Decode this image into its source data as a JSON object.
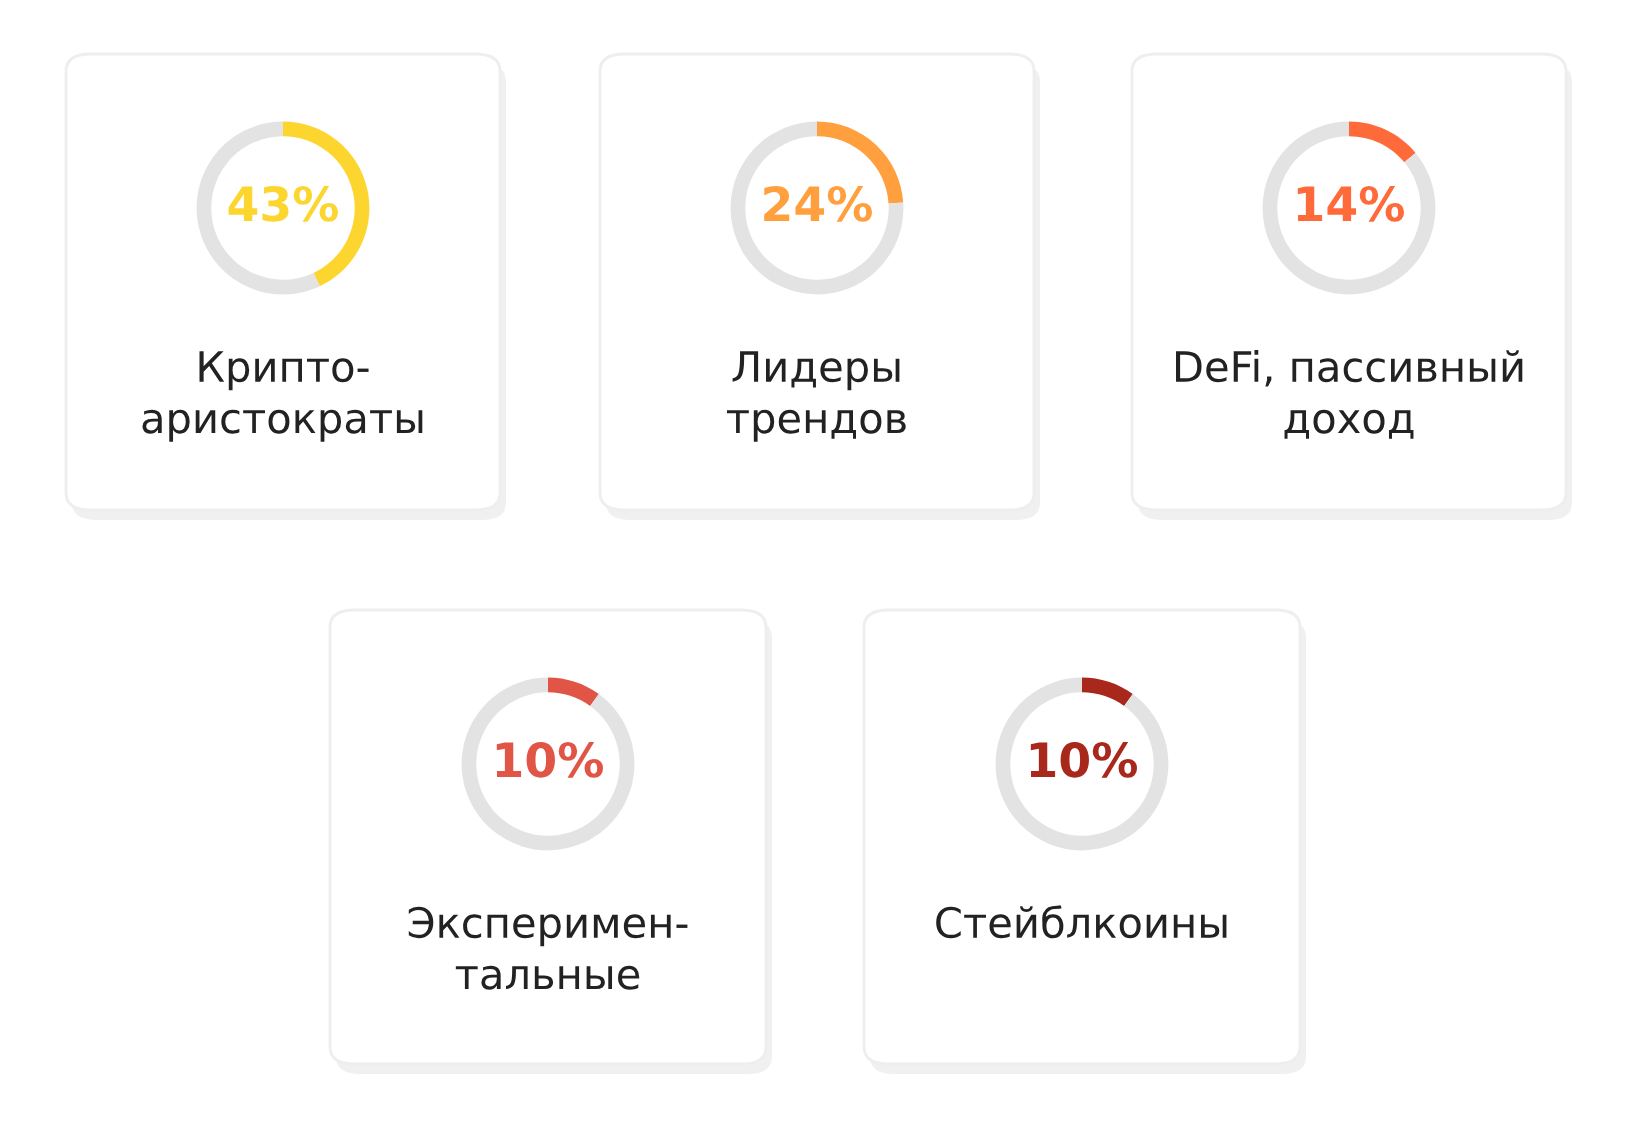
{
  "chart_data": [
    {
      "type": "donut",
      "title": "Крипто-\nаристократы",
      "categories": [
        null,
        null
      ],
      "values": [
        43,
        57
      ],
      "colors": [
        "#fdd52f",
        "#e3e3e3"
      ],
      "value_labels": [
        "43%",
        null
      ]
    },
    {
      "type": "donut",
      "title": "Лидеры\nтрендов",
      "categories": [
        null,
        null
      ],
      "values": [
        24,
        76
      ],
      "colors": [
        "#ff9f3d",
        "#e3e3e3"
      ],
      "value_labels": [
        "24%",
        null
      ]
    },
    {
      "type": "donut",
      "title": "DeFi, пассивный\nдоход",
      "categories": [
        null,
        null
      ],
      "values": [
        14,
        86
      ],
      "colors": [
        "#ff6a3a",
        "#e3e3e3"
      ],
      "value_labels": [
        "14%",
        null
      ]
    },
    {
      "type": "donut",
      "title": "Эксперимен-\nтальные",
      "categories": [
        null,
        null
      ],
      "values": [
        10,
        90
      ],
      "colors": [
        "#e05546",
        "#e3e3e3"
      ],
      "value_labels": [
        "10%",
        null
      ]
    },
    {
      "type": "donut",
      "title": "Стейблкоины",
      "categories": [
        null,
        null
      ],
      "values": [
        10,
        90
      ],
      "colors": [
        "#a8291b",
        "#e3e3e3"
      ],
      "value_labels": [
        "10%",
        null
      ]
    }
  ]
}
